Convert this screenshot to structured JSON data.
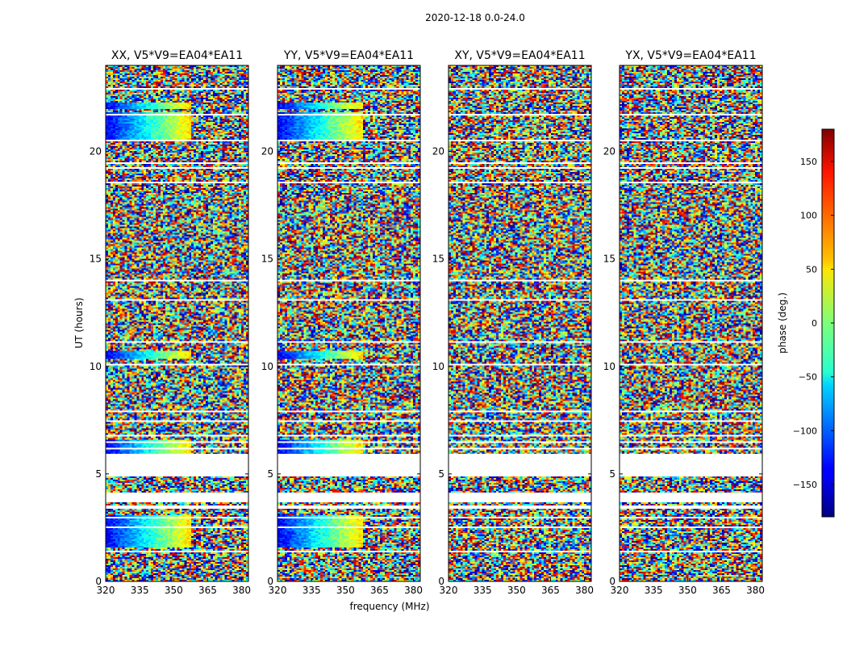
{
  "chart_data": {
    "type": "heatmap",
    "suptitle": "2020-12-18 0.0-24.0",
    "xlabel": "frequency (MHz)",
    "ylabel": "UT (hours)",
    "xlim": [
      320,
      383
    ],
    "ylim": [
      0,
      24
    ],
    "xticks": [
      "320",
      "335",
      "350",
      "365",
      "380"
    ],
    "yticks": [
      "0",
      "5",
      "10",
      "15",
      "20"
    ],
    "colorbar": {
      "label": "phase (deg.)",
      "range": [
        -180,
        180
      ],
      "ticks": [
        "150",
        "100",
        "50",
        "0",
        "−50",
        "−100",
        "−150"
      ],
      "colormap": "jet"
    },
    "panels": [
      {
        "title": "XX, V5*V9=EA04*EA11",
        "pol": "XX"
      },
      {
        "title": "YY, V5*V9=EA04*EA11",
        "pol": "YY"
      },
      {
        "title": "XY, V5*V9=EA04*EA11",
        "pol": "XY"
      },
      {
        "title": "YX, V5*V9=EA04*EA11",
        "pol": "YX"
      }
    ],
    "flagged_ut_ranges": [
      [
        18.1,
        19.1
      ],
      [
        19.85,
        20.3
      ],
      [
        20.45,
        20.65
      ]
    ],
    "coherent_phase_bands": [
      {
        "ut": [
          20.5,
          21.8
        ],
        "note": "blue-to-red phase slope (parallel hands)"
      },
      {
        "ut": [
          22.0,
          22.3
        ],
        "note": "blue-to-red phase slope (parallel hands)"
      },
      {
        "ut": [
          10.35,
          10.7
        ],
        "note": "blue-to-red phase slope (parallel hands)"
      },
      {
        "ut": [
          5.9,
          6.6
        ],
        "note": "blue-to-red phase slope (parallel hands)"
      },
      {
        "ut": [
          1.6,
          3.1
        ],
        "note": "blue-to-red phase slope (parallel hands)"
      }
    ]
  }
}
